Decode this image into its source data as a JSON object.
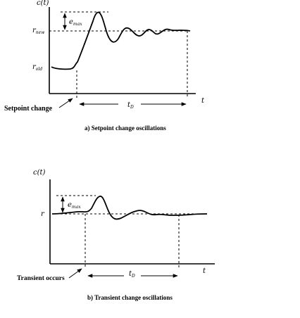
{
  "panel_a": {
    "y_label": "c(t)",
    "r_new": "r",
    "r_new_sub": "new",
    "r_old": "r",
    "r_old_sub": "old",
    "e_max": "e",
    "e_max_sub": "max",
    "t_d": "t",
    "t_d_sub": "D",
    "t_label": "t",
    "annotation": "Setpoint change",
    "caption": "a) Setpoint change oscillations"
  },
  "panel_b": {
    "y_label": "c(t)",
    "r": "r",
    "e_max": "e",
    "e_max_sub": "max",
    "t_d": "t",
    "t_d_sub": "D",
    "t_label": "t",
    "annotation": "Transient occurs",
    "caption": "b) Transient change oscillations"
  }
}
